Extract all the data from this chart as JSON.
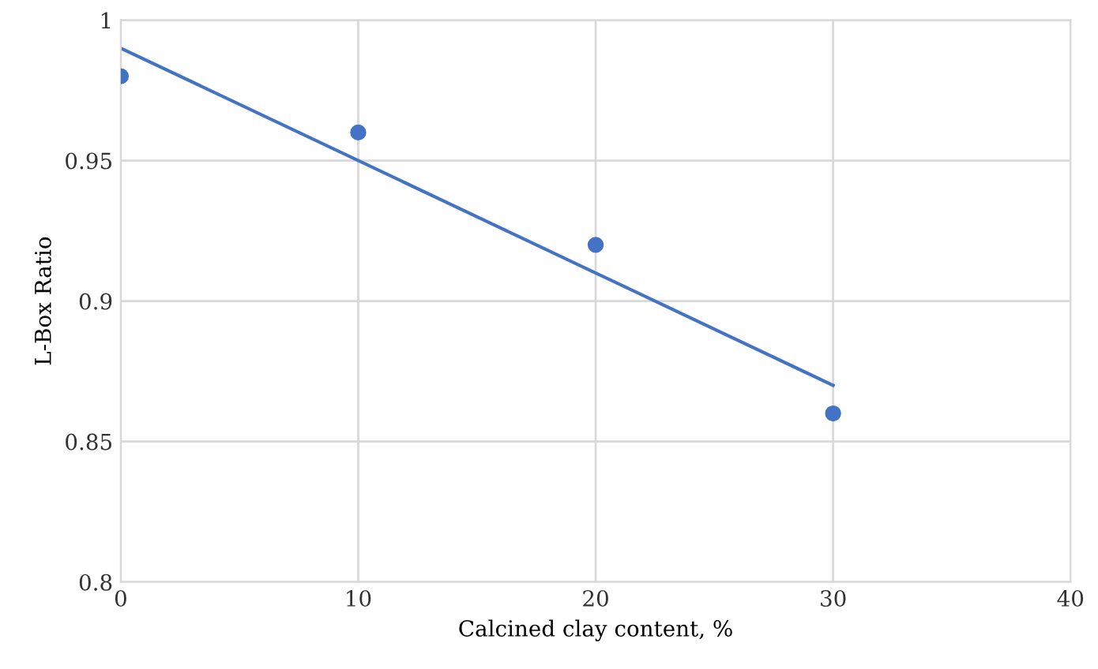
{
  "chart_data": {
    "type": "scatter",
    "xlabel": "Calcined clay content, %",
    "ylabel": "L-Box Ratio",
    "xlim": [
      0,
      40
    ],
    "xticks": [
      0,
      10,
      20,
      30,
      40
    ],
    "ylim": [
      0.8,
      1
    ],
    "yticks": [
      0.8,
      0.85,
      0.9,
      0.95,
      1
    ],
    "grid": true,
    "series": [
      {
        "color": "#4472c4",
        "x": [
          0,
          10,
          20,
          30
        ],
        "values": [
          0.98,
          0.96,
          0.92,
          0.86
        ],
        "marker": "circle"
      },
      {
        "type": "line",
        "color": "#4472c4",
        "x": [
          0,
          30
        ],
        "values": [
          0.99,
          0.87
        ],
        "marker": "none",
        "line_style": "solid"
      }
    ]
  }
}
